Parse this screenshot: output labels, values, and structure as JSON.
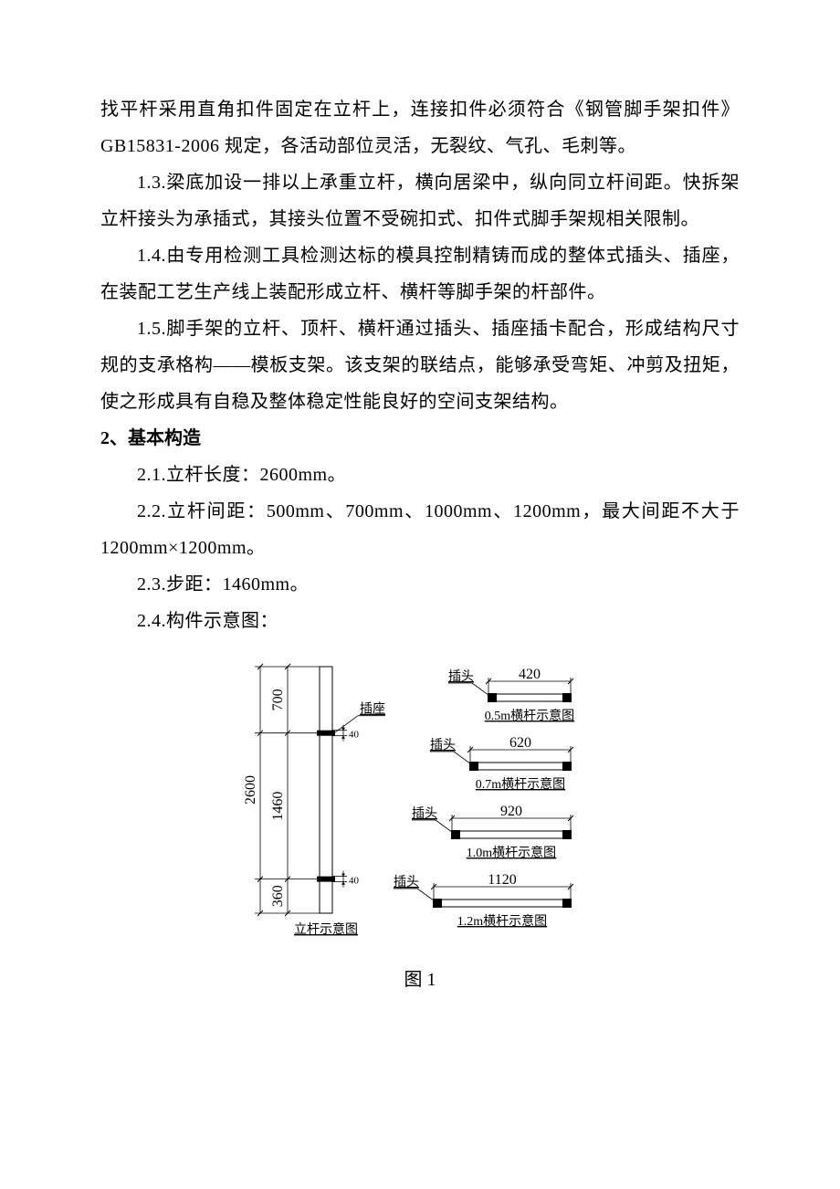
{
  "paragraphs": {
    "p0": "找平杆采用直角扣件固定在立杆上，连接扣件必须符合《钢管脚手架扣件》GB15831-2006 规定，各活动部位灵活，无裂纹、气孔、毛刺等。",
    "p1": "1.3.梁底加设一排以上承重立杆，横向居梁中，纵向同立杆间距。快拆架立杆接头为承插式，其接头位置不受碗扣式、扣件式脚手架规相关限制。",
    "p2": "1.4.由专用检测工具检测达标的模具控制精铸而成的整体式插头、插座，在装配工艺生产线上装配形成立杆、横杆等脚手架的杆部件。",
    "p3": "1.5.脚手架的立杆、顶杆、横杆通过插头、插座插卡配合，形成结构尺寸规的支承格构——模板支架。该支架的联结点，能够承受弯矩、冲剪及扭矩，使之形成具有自稳及整体稳定性能良好的空间支架结构。"
  },
  "heading2": "2、基本构造",
  "items2": {
    "i1": "2.1.立杆长度：2600mm。",
    "i2": "2.2.立杆间距：500mm、700mm、1000mm、1200mm，最大间距不大于 1200mm×1200mm。",
    "i3": "2.3.步距：1460mm。",
    "i4": "2.4.构件示意图："
  },
  "figure": {
    "caption": "图 1",
    "stroke": "#000000",
    "fill_none": "none",
    "fill_black": "#000000",
    "font_dim": 16,
    "font_label": 14,
    "vertical": {
      "height_total": "2600",
      "seg_top": "700",
      "seg_mid": "1460",
      "seg_bot": "360",
      "socket_h": "40",
      "socket_label": "插座",
      "title": "立杆示意图"
    },
    "horiz": [
      {
        "dim": "420",
        "plug": "插头",
        "title": "0.5m横杆示意图"
      },
      {
        "dim": "620",
        "plug": "插头",
        "title": "0.7m横杆示意图"
      },
      {
        "dim": "920",
        "plug": "插头",
        "title": "1.0m横杆示意图"
      },
      {
        "dim": "1120",
        "plug": "插头",
        "title": "1.2m横杆示意图"
      }
    ]
  }
}
